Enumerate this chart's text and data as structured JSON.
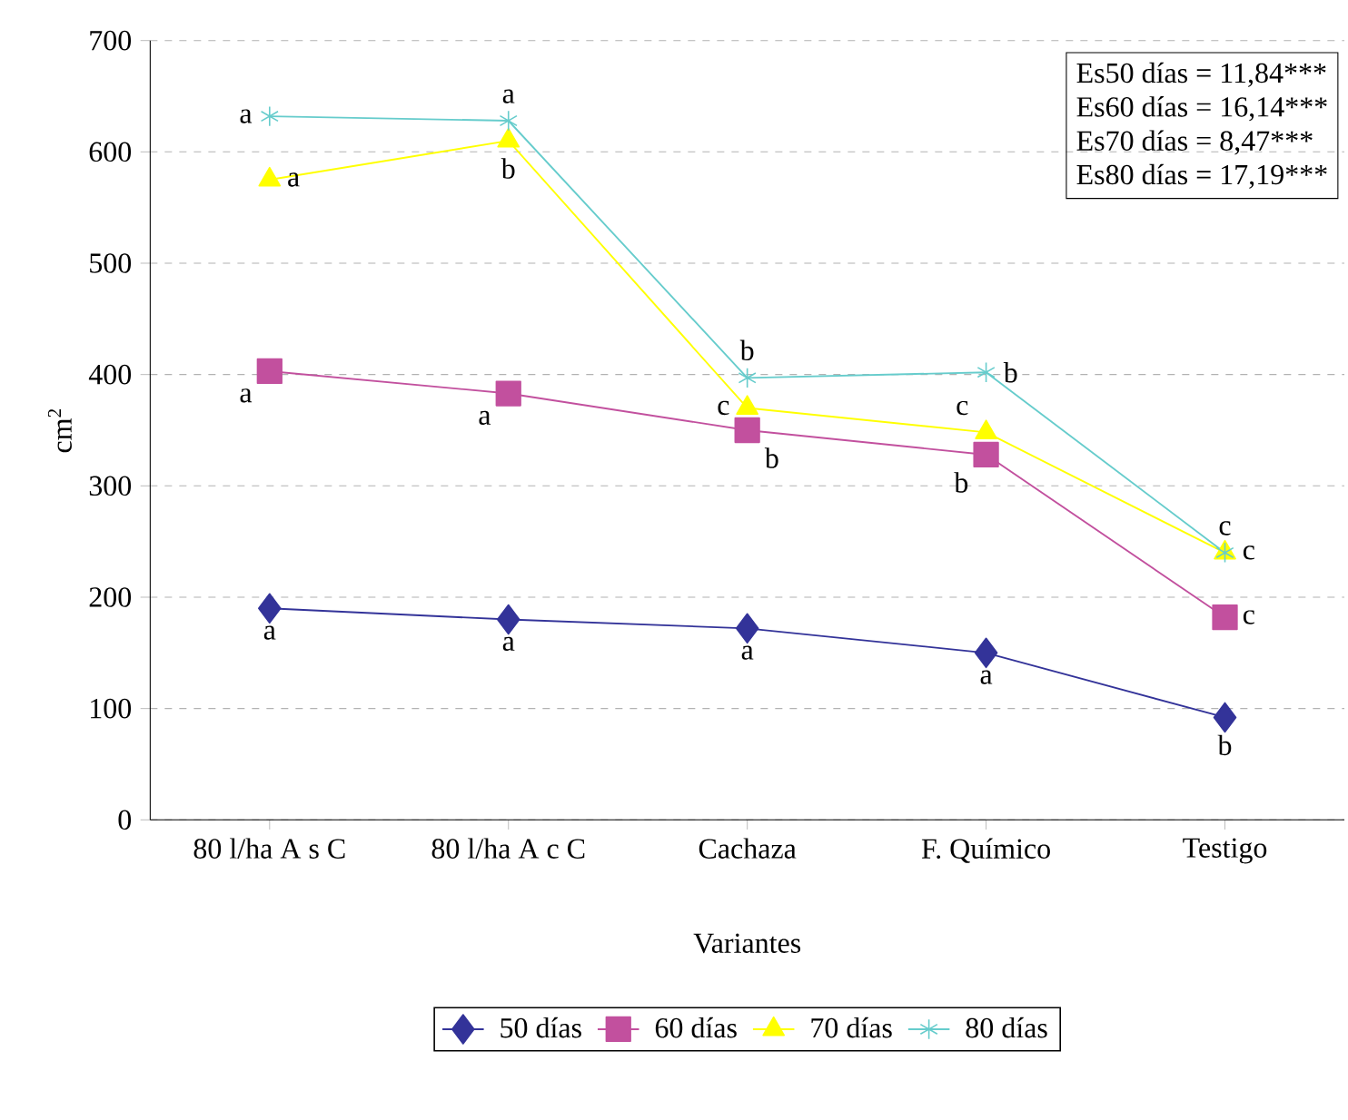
{
  "chart_data": {
    "type": "line",
    "xlabel": "Variantes",
    "ylabel": "cm$^{2}$",
    "categories": [
      "80 l/ha A s C",
      "80 l/ha A c C",
      "Cachaza",
      "F. Químico",
      "Testigo"
    ],
    "series": [
      {
        "name": "50 días",
        "color": "#333399",
        "marker": "diamond",
        "values": [
          190,
          180,
          172,
          150,
          92
        ]
      },
      {
        "name": "60 días",
        "color": "#c2509e",
        "marker": "square",
        "values": [
          403,
          383,
          350,
          328,
          182
        ]
      },
      {
        "name": "70 días",
        "color": "#ffff00",
        "marker": "triangle",
        "values": [
          575,
          610,
          370,
          348,
          240
        ]
      },
      {
        "name": "80 días",
        "color": "#66cccc",
        "marker": "cross",
        "values": [
          632,
          628,
          397,
          402,
          240
        ]
      }
    ],
    "ylim": [
      0,
      700
    ],
    "yticks": [
      0,
      100,
      200,
      300,
      400,
      500,
      600,
      700
    ],
    "grid": "y",
    "legend": "bottom",
    "line_style": "solid",
    "annotations": [
      "Es50 días = 11,84***",
      "Es60 días = 16,14***",
      "Es70 días = 8,47***",
      "Es80 días = 17,19***",
      {
        "text": "a",
        "x": "80 l/ha A s C",
        "y": 190
      },
      {
        "text": "a",
        "x": "80 l/ha A c C",
        "y": 180
      },
      {
        "text": "a",
        "x": "Cachaza",
        "y": 172
      },
      {
        "text": "a",
        "x": "F. Químico",
        "y": 150
      },
      {
        "text": "b",
        "x": "Testigo",
        "y": 92
      },
      {
        "text": "a",
        "x": "80 l/ha A s C",
        "y": 403
      },
      {
        "text": "a",
        "x": "80 l/ha A c C",
        "y": 383
      },
      {
        "text": "b",
        "x": "Cachaza",
        "y": 350
      },
      {
        "text": "b",
        "x": "F. Químico",
        "y": 328
      },
      {
        "text": "c",
        "x": "Testigo",
        "y": 182
      },
      {
        "text": "a",
        "x": "80 l/ha A s C",
        "y": 575
      },
      {
        "text": "b",
        "x": "80 l/ha A c C",
        "y": 610
      },
      {
        "text": "c",
        "x": "Cachaza",
        "y": 370
      },
      {
        "text": "c",
        "x": "F. Químico",
        "y": 348
      },
      {
        "text": "c",
        "x": "Testigo",
        "y": 240
      },
      {
        "text": "a",
        "x": "80 l/ha A s C",
        "y": 632
      },
      {
        "text": "a",
        "x": "80 l/ha A c C",
        "y": 628
      },
      {
        "text": "b",
        "x": "Cachaza",
        "y": 397
      },
      {
        "text": "b",
        "x": "F. Químico",
        "y": 402
      },
      {
        "text": "c",
        "x": "Testigo",
        "y": 240
      }
    ]
  }
}
